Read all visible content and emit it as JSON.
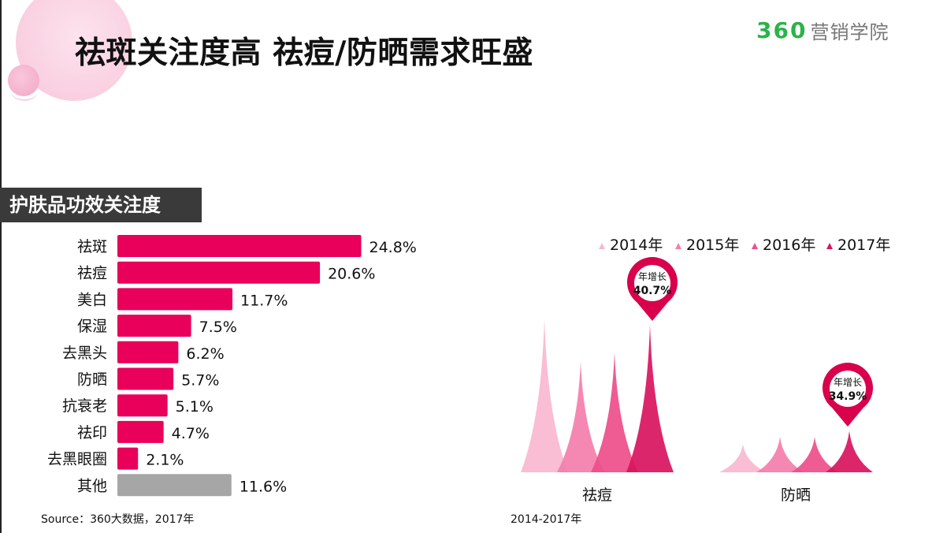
{
  "header": {
    "title": "祛斑关注度高 祛痘/防晒需求旺盛",
    "brand_number": "360",
    "brand_text": "营销学院"
  },
  "section": {
    "label": "护肤品功效关注度"
  },
  "colors": {
    "bar_accent": "#e8005a",
    "bar_other": "#a6a6a6",
    "title_tab": "#3a3a3a",
    "brand_green": "#2bb34a",
    "pin": "#d9004c",
    "year_2014": "#f8b7d0",
    "year_2015": "#f47eab",
    "year_2016": "#ee4d8a",
    "year_2017": "#d9145e"
  },
  "chart_data": [
    {
      "type": "bar",
      "orientation": "horizontal",
      "title": "护肤品功效关注度",
      "categories": [
        "祛斑",
        "祛痘",
        "美白",
        "保湿",
        "去黑头",
        "防晒",
        "抗衰老",
        "祛印",
        "去黑眼圈",
        "其他"
      ],
      "values": [
        24.8,
        20.6,
        11.7,
        7.5,
        6.2,
        5.7,
        5.1,
        4.7,
        2.1,
        11.6
      ],
      "labels": [
        "24.8%",
        "20.6%",
        "11.7%",
        "7.5%",
        "6.2%",
        "5.7%",
        "5.1%",
        "4.7%",
        "2.1%",
        "11.6%"
      ],
      "unit": "%",
      "xlim": [
        0,
        25
      ],
      "grid": false,
      "source": "Source：360大数据，2017年"
    },
    {
      "type": "area",
      "title": "",
      "period_label": "2014-2017年",
      "legend": [
        "2014年",
        "2015年",
        "2016年",
        "2017年"
      ],
      "legend_position": "top",
      "groups": [
        {
          "name": "祛痘",
          "values": [
            1.0,
            0.72,
            0.78,
            0.96
          ],
          "annotation": {
            "label": "年增长",
            "value": "40.7%"
          }
        },
        {
          "name": "防晒",
          "values": [
            0.18,
            0.23,
            0.23,
            0.27
          ],
          "annotation": {
            "label": "年增长",
            "value": "34.9%"
          }
        }
      ],
      "grid": false
    }
  ]
}
